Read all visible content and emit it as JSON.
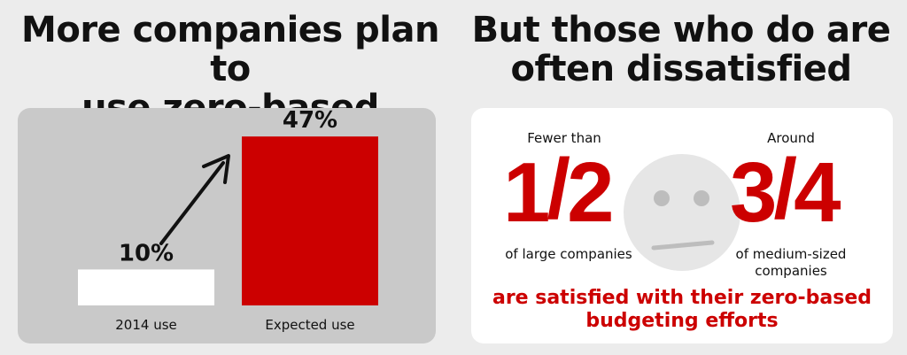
{
  "left": {
    "heading_line1": "More companies plan to",
    "heading_line2": "use zero-based budgeting"
  },
  "right": {
    "heading_line1": "But those who do are",
    "heading_line2": "often dissatisfied",
    "fewer_than": "Fewer than",
    "fraction_left_num": "1",
    "fraction_left_den": "2",
    "large_label": "of large companies",
    "around": "Around",
    "fraction_right_num": "3",
    "fraction_right_den": "4",
    "medium_label_line1": "of medium-sized",
    "medium_label_line2": "companies",
    "note_line1": "are satisfied with their zero-based",
    "note_line2": "budgeting efforts"
  },
  "colors": {
    "accent": "#cc0000",
    "bar_2014": "#ffffff",
    "bar_expected": "#cc0000",
    "left_panel_bg": "#c9c9c9",
    "page_bg": "#ececec",
    "face": "#e6e6e6"
  },
  "icons": [
    "neutral-face-icon",
    "arrow-up-right-icon"
  ],
  "chart_data": {
    "type": "bar",
    "categories": [
      "2014 use",
      "Expected use"
    ],
    "values": [
      10,
      47
    ],
    "value_labels": [
      "10%",
      "47%"
    ],
    "ylim": [
      0,
      50
    ],
    "grid": false,
    "title": "",
    "xlabel": "",
    "ylabel": ""
  }
}
